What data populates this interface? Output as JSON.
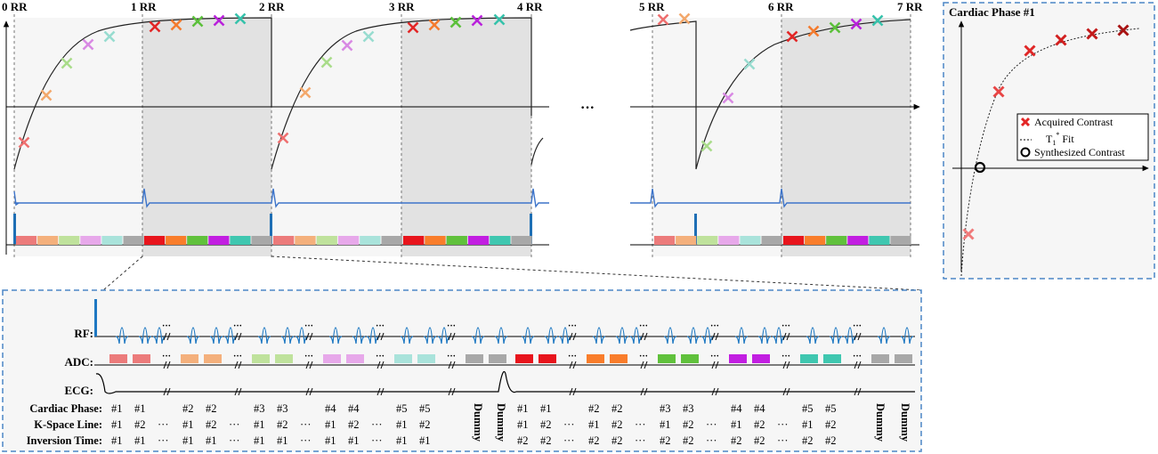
{
  "top": {
    "rr_labels": [
      "0 RR",
      "1 RR",
      "2 RR",
      "3 RR",
      "4 RR",
      "5 RR",
      "6 RR",
      "7 RR"
    ],
    "ellipsis": "···"
  },
  "inset": {
    "title": "Cardiac Phase #1",
    "legend": {
      "acquired": "Acquired Contrast",
      "fit_prefix": "T",
      "fit_sub": "1",
      "fit_sup": "*",
      "fit_suffix": " Fit",
      "synthesized": "Synthesized Contrast"
    }
  },
  "detail": {
    "row_labels": {
      "rf": "RF:",
      "adc": "ADC:",
      "ecg": "ECG:"
    },
    "table_labels": [
      "Cardiac Phase:",
      "K-Space Line:",
      "Inversion Time:"
    ],
    "dummy_label": "Dummy",
    "ellipsis": "···"
  },
  "colors": {
    "phase_light": [
      "#ec7b7b",
      "#f4b07c",
      "#bfe29c",
      "#e7a8ea",
      "#a9e3db",
      "#a8a8a8"
    ],
    "phase_bright": [
      "#e8141c",
      "#f97d2b",
      "#60c13c",
      "#c21ee1",
      "#3fc7b0",
      "#a8a8a8"
    ],
    "x_light": [
      "#ee6f6f",
      "#f3a86c",
      "#a9dc8a",
      "#d889e4",
      "#98dcd0"
    ],
    "x_bright": [
      "#e32626",
      "#f47b2e",
      "#5cc03b",
      "#b922db",
      "#36c2ab"
    ],
    "inset_x": [
      "#f07a7a",
      "#e84545",
      "#e02727",
      "#d21f1f",
      "#c21a1a",
      "#a81313"
    ],
    "ecg_line": "#3d74c9",
    "rf_pulse": "#1e78c2"
  }
}
